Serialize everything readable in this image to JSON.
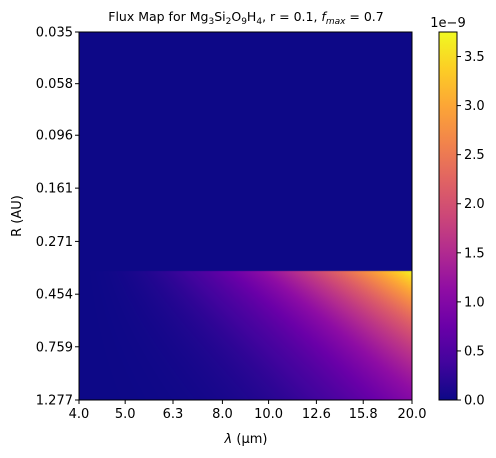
{
  "chart_data": {
    "type": "heatmap",
    "title_parts": {
      "prefix": "Flux Map for Mg",
      "sub1": "3",
      "mid1": "Si",
      "sub2": "2",
      "mid2": "O",
      "sub3": "9",
      "mid3": "H",
      "sub4": "4",
      "r_text": ", r = 0.1, ",
      "fmax_f": "f",
      "fmax_sub": "max",
      "fmax_value": " = 0.7"
    },
    "xlabel_parts": {
      "lambda": "λ",
      "unit": " (μm)"
    },
    "ylabel": "R (AU)",
    "x_scale": "log",
    "y_scale": "log",
    "y_inverted": true,
    "xlim": [
      4.0,
      20.0
    ],
    "ylim": [
      0.035,
      1.277
    ],
    "x_ticks": [
      "4.0",
      "5.0",
      "6.3",
      "8.0",
      "10.0",
      "12.6",
      "15.8",
      "20.0"
    ],
    "y_ticks": [
      "0.035",
      "0.058",
      "0.096",
      "0.161",
      "0.271",
      "0.454",
      "0.759",
      "1.277"
    ],
    "colormap": "plasma",
    "colorbar": {
      "vmin": 0.0,
      "vmax": 3.75e-09,
      "ticks": [
        "0.0",
        "0.5",
        "1.0",
        "1.5",
        "2.0",
        "2.5",
        "3.0",
        "3.5"
      ],
      "offset_label": "1e−9"
    },
    "z_description": "flux is ~0 for R < 0.36 AU; nonzero below, peaking ~3.7e-9 at λ=20 µm, R≈0.36 AU, decreasing toward larger R and shorter λ",
    "cutoff_R": 0.36,
    "peak_value": 3.7e-09
  }
}
